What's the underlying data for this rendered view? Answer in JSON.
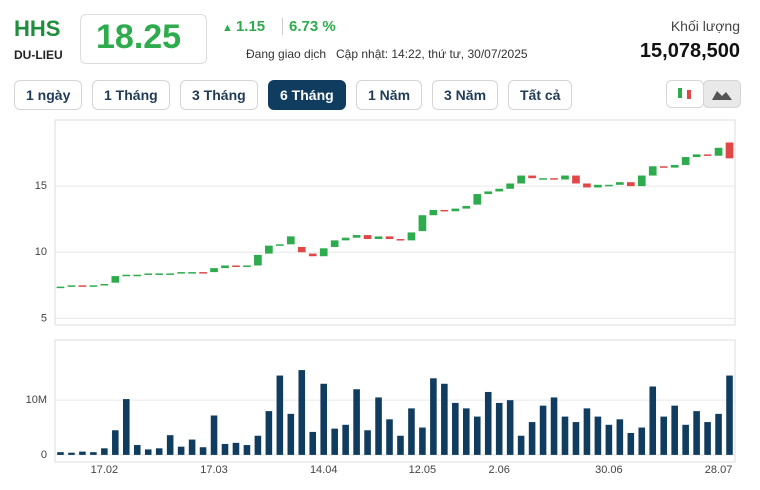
{
  "header": {
    "symbol": "HHS",
    "exchange": "DU-LIEU",
    "price": 18.25,
    "change": 1.15,
    "change_pct": "6.73 %",
    "status": "Đang giao dịch",
    "updated": "Cập nhật: 14:22, thứ tư, 30/07/2025",
    "volume_label": "Khối lượng",
    "volume": "15,078,500"
  },
  "buttons": [
    "1 ngày",
    "1 Tháng",
    "3 Tháng",
    "6 Tháng",
    "1 Năm",
    "3 Năm",
    "Tất cả"
  ],
  "active_button": 3,
  "chart_data": [
    {
      "type": "candlestick",
      "up_color": "#2eab4c",
      "down_color": "#e04848",
      "categories": [
        null,
        null,
        null,
        null,
        "17.02",
        null,
        null,
        null,
        null,
        null,
        null,
        null,
        null,
        null,
        "17.03",
        null,
        null,
        null,
        null,
        null,
        null,
        null,
        null,
        null,
        "14.04",
        null,
        null,
        null,
        null,
        null,
        null,
        null,
        null,
        "12.05",
        null,
        null,
        null,
        null,
        null,
        null,
        "2.06",
        null,
        null,
        null,
        null,
        null,
        null,
        null,
        null,
        null,
        "30.06",
        null,
        null,
        null,
        null,
        null,
        null,
        null,
        null,
        null,
        "28.07",
        null
      ],
      "open": [
        7.3,
        7.4,
        7.5,
        7.4,
        7.5,
        7.7,
        8.2,
        8.3,
        8.3,
        8.4,
        8.4,
        8.4,
        8.5,
        8.5,
        8.5,
        8.8,
        9.0,
        8.9,
        9.0,
        9.9,
        10.5,
        10.6,
        10.4,
        9.9,
        9.7,
        10.4,
        10.9,
        11.1,
        11.3,
        11.0,
        11.2,
        11.0,
        10.9,
        11.6,
        12.8,
        13.2,
        13.1,
        13.3,
        13.6,
        14.4,
        14.6,
        14.8,
        15.2,
        15.8,
        15.6,
        15.6,
        15.5,
        15.8,
        15.2,
        14.9,
        15.1,
        15.1,
        15.3,
        15.0,
        15.8,
        16.5,
        16.4,
        16.6,
        17.2,
        17.4,
        17.3,
        18.3
      ],
      "close": [
        7.4,
        7.5,
        7.4,
        7.5,
        7.6,
        8.2,
        8.3,
        8.3,
        8.4,
        8.4,
        8.4,
        8.5,
        8.5,
        8.4,
        8.8,
        9.0,
        8.9,
        9.0,
        9.8,
        10.5,
        10.6,
        11.2,
        10.0,
        9.7,
        10.3,
        10.9,
        11.1,
        11.3,
        11.0,
        11.2,
        11.0,
        10.9,
        11.5,
        12.8,
        13.2,
        13.1,
        13.3,
        13.5,
        14.4,
        14.6,
        14.8,
        15.2,
        15.8,
        15.6,
        15.6,
        15.5,
        15.8,
        15.2,
        14.9,
        15.1,
        15.1,
        15.3,
        15.0,
        15.8,
        16.5,
        16.4,
        16.6,
        17.2,
        17.4,
        17.3,
        17.9,
        17.1
      ],
      "ylim": [
        4.5,
        20
      ],
      "yticks": [
        5,
        10,
        15
      ],
      "grid": true
    },
    {
      "type": "bar",
      "color": "#0f3c5f",
      "values": [
        0.5,
        0.4,
        0.6,
        0.5,
        1.2,
        4.5,
        10.2,
        1.8,
        1.0,
        1.2,
        3.6,
        1.5,
        2.8,
        1.4,
        7.2,
        2.0,
        2.2,
        1.8,
        3.5,
        8.0,
        14.5,
        7.5,
        15.5,
        4.2,
        13.0,
        4.8,
        5.5,
        12.0,
        4.5,
        10.5,
        6.5,
        3.5,
        8.5,
        5.0,
        14.0,
        13.0,
        9.5,
        8.5,
        7.0,
        11.5,
        9.5,
        10.0,
        3.5,
        6.0,
        9.0,
        10.5,
        7.0,
        6.0,
        8.5,
        7.0,
        5.5,
        6.5,
        4.0,
        5.0,
        12.5,
        7.0,
        9.0,
        5.5,
        8.0,
        6.0,
        7.5,
        14.5
      ],
      "ylim": [
        -1.3,
        21
      ],
      "yticks": [
        0,
        {
          "value": 10,
          "label": "10M"
        }
      ],
      "grid": true
    }
  ]
}
